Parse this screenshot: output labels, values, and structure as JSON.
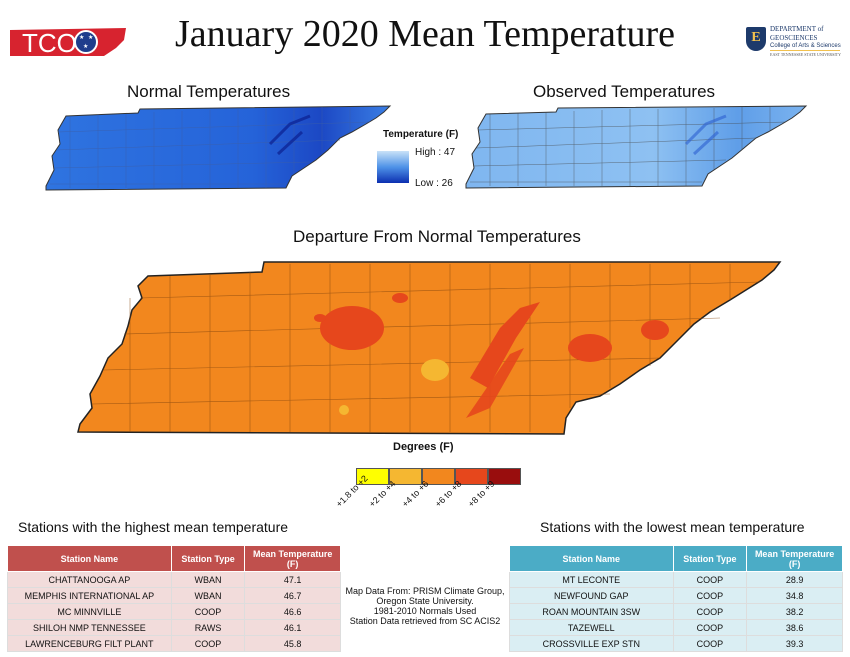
{
  "header": {
    "title": "January 2020 Mean Temperature",
    "tco_logo_text": "TCO",
    "dept_logo": {
      "line1": "DEPARTMENT of",
      "line2": "GEOSCIENCES",
      "line3": "College of Arts & Sciences",
      "line4": "EAST TENNESSEE STATE UNIVERSITY"
    }
  },
  "maps": {
    "normal_title": "Normal Temperatures",
    "observed_title": "Observed Temperatures",
    "departure_title": "Departure From Normal Temperatures"
  },
  "temperature_legend": {
    "title": "Temperature (F)",
    "high_label": "High : 47",
    "low_label": "Low : 26",
    "high_value": 47,
    "low_value": 26
  },
  "departure_legend": {
    "title": "Degrees (F)",
    "classes": [
      {
        "label": "+1.8 to +2",
        "color": "#ffff00"
      },
      {
        "label": "+2 to +4",
        "color": "#f5b731"
      },
      {
        "label": "+4 to +6",
        "color": "#f2871e"
      },
      {
        "label": "+6 to +8",
        "color": "#e6471c"
      },
      {
        "label": "+8 to +9",
        "color": "#990d0d"
      }
    ]
  },
  "highest_table": {
    "title": "Stations with the highest mean temperature",
    "header_color": "#c0504d",
    "row_color": "#f2dcdb",
    "columns": [
      "Station Name",
      "Station Type",
      "Mean Temperature (F)"
    ],
    "rows": [
      [
        "CHATTANOOGA AP",
        "WBAN",
        "47.1"
      ],
      [
        "MEMPHIS INTERNATIONAL AP",
        "WBAN",
        "46.7"
      ],
      [
        "MC MINNVILLE",
        "COOP",
        "46.6"
      ],
      [
        "SHILOH NMP TENNESSEE",
        "RAWS",
        "46.1"
      ],
      [
        "LAWRENCEBURG FILT PLANT",
        "COOP",
        "45.8"
      ]
    ]
  },
  "lowest_table": {
    "title": "Stations with the lowest mean temperature",
    "header_color": "#4bacc6",
    "row_color": "#daeef3",
    "columns": [
      "Station Name",
      "Station Type",
      "Mean Temperature (F)"
    ],
    "rows": [
      [
        "MT LECONTE",
        "COOP",
        "28.9"
      ],
      [
        "NEWFOUND GAP",
        "COOP",
        "34.8"
      ],
      [
        "ROAN MOUNTAIN 3SW",
        "COOP",
        "38.2"
      ],
      [
        "TAZEWELL",
        "COOP",
        "38.6"
      ],
      [
        "CROSSVILLE EXP STN",
        "COOP",
        "39.3"
      ]
    ]
  },
  "credits": {
    "line1": "Map Data From: PRISM Climate Group,",
    "line2": "Oregon State University.",
    "line3": "1981-2010 Normals Used",
    "line4": "Station Data retrieved from SC ACIS2"
  }
}
